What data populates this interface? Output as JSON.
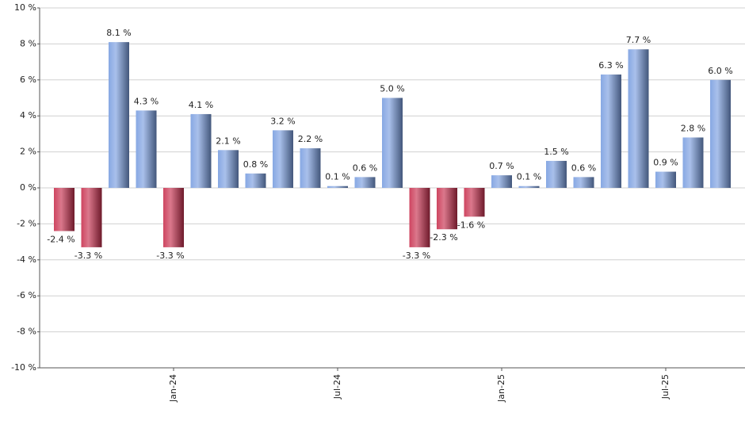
{
  "chart_data": {
    "type": "bar",
    "categories": [
      null,
      null,
      null,
      null,
      "Jan-24",
      null,
      null,
      null,
      null,
      null,
      "Jul-24",
      null,
      null,
      null,
      null,
      null,
      "Jan-25",
      null,
      null,
      null,
      null,
      null,
      "Jul-25",
      null,
      null
    ],
    "values": [
      -2.4,
      -3.3,
      8.1,
      4.3,
      -3.3,
      4.1,
      2.1,
      0.8,
      3.2,
      2.2,
      0.1,
      0.6,
      5.0,
      -3.3,
      -2.3,
      -1.6,
      0.7,
      0.1,
      1.5,
      0.6,
      6.3,
      7.7,
      0.9,
      2.8,
      6.0
    ],
    "value_labels": [
      "-2.4 %",
      "-3.3 %",
      "8.1 %",
      "4.3 %",
      "-3.3 %",
      "4.1 %",
      "2.1 %",
      "0.8 %",
      "3.2 %",
      "2.2 %",
      "0.1 %",
      "0.6 %",
      "5.0 %",
      "-3.3 %",
      "-2.3 %",
      "-1.6 %",
      "0.7 %",
      "0.1 %",
      "1.5 %",
      "0.6 %",
      "6.3 %",
      "7.7 %",
      "0.9 %",
      "2.8 %",
      "6.0 %"
    ],
    "positive_color": "#7a9ee0",
    "negative_color": "#c8304e",
    "ylim": [
      -10,
      10
    ],
    "yticks": [
      {
        "value": -10,
        "label": "-10 %"
      },
      {
        "value": -8,
        "label": "-8 %"
      },
      {
        "value": -6,
        "label": "-6 %"
      },
      {
        "value": -4,
        "label": "-4 %"
      },
      {
        "value": -2,
        "label": "-2 %"
      },
      {
        "value": 0,
        "label": "0 %"
      },
      {
        "value": 2,
        "label": "2 %"
      },
      {
        "value": 4,
        "label": "4 %"
      },
      {
        "value": 6,
        "label": "6 %"
      },
      {
        "value": 8,
        "label": "8 %"
      },
      {
        "value": 10,
        "label": "10 %"
      }
    ],
    "grid": true
  }
}
